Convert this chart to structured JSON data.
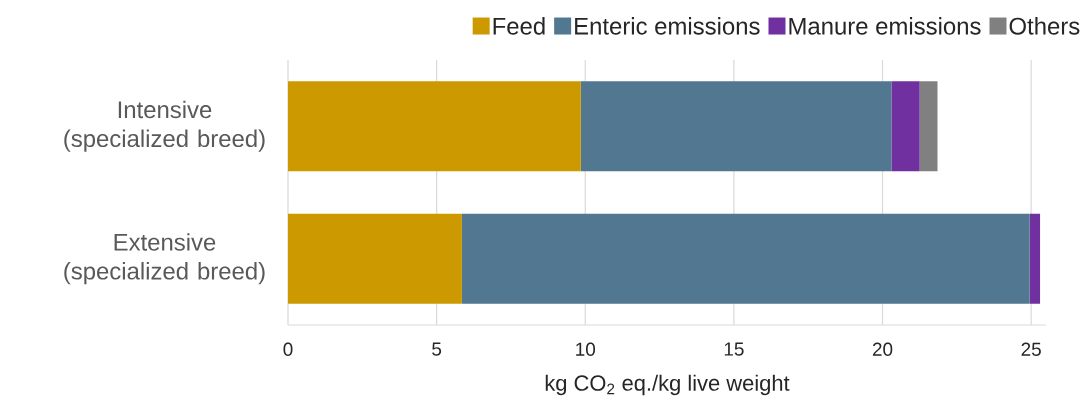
{
  "chart_data": {
    "type": "bar",
    "orientation": "horizontal",
    "stacked": true,
    "xlabel": "kg CO$_{2}$ eq./kg live weight",
    "categories": [
      "Intensive (specialized breed)",
      "Extensive (specialized breed)"
    ],
    "series": [
      {
        "name": "Feed",
        "color": "#cc9a00",
        "values": [
          9.85,
          5.85
        ]
      },
      {
        "name": "Enteric emissions",
        "color": "#527891",
        "values": [
          10.45,
          19.1
        ]
      },
      {
        "name": "Manure emissions",
        "color": "#7030a0",
        "values": [
          0.95,
          0.35
        ]
      },
      {
        "name": "Others",
        "color": "#808080",
        "values": [
          0.6,
          null
        ]
      }
    ],
    "xlim": [
      0,
      25.5
    ],
    "xticks": [
      0,
      5,
      10,
      15,
      20,
      25
    ],
    "grid": "x",
    "legend": "top right"
  }
}
